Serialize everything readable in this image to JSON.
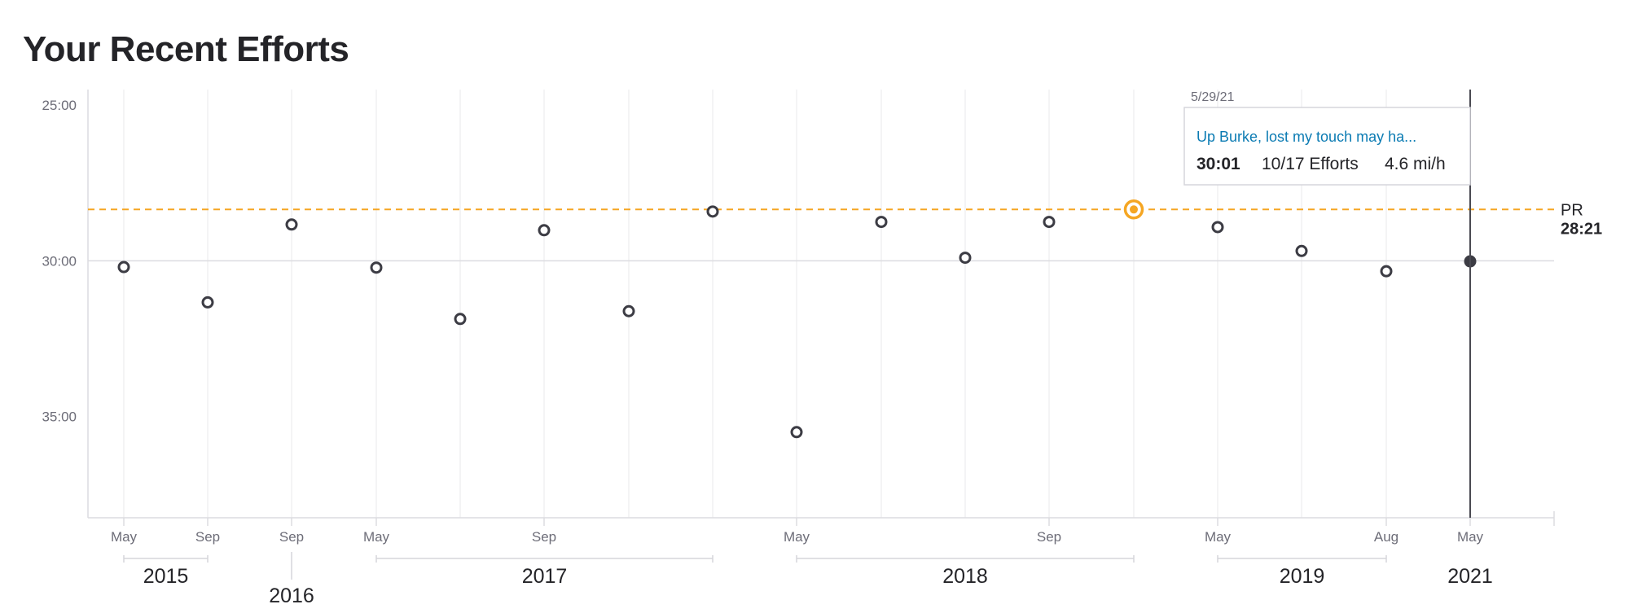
{
  "page": {
    "title": "Your Recent Efforts"
  },
  "chart_data": {
    "type": "scatter",
    "title": "Your Recent Efforts",
    "ylabel": "",
    "xlabel": "",
    "y_unit": "elapsed time (mm:ss)",
    "y_axis_inverted": true,
    "y_ticks": [
      "25:00",
      "30:00",
      "35:00"
    ],
    "ylim": [
      "24:30",
      "38:15"
    ],
    "grid": {
      "horizontal_at": [
        "30:00"
      ],
      "vertical_at_months": true
    },
    "x_month_labels": [
      "May",
      "Sep",
      "Sep",
      "May",
      "Sep",
      "May",
      "Sep",
      "May",
      "Aug",
      "May"
    ],
    "x_year_labels": [
      "2015",
      "2016",
      "2017",
      "2018",
      "2019",
      "2021"
    ],
    "points": [
      {
        "date": "May 2015",
        "time": "30:12"
      },
      {
        "date": "Sep 2015",
        "time": "31:20"
      },
      {
        "date": "Sep 2016",
        "time": "28:50"
      },
      {
        "date": "May 2017",
        "time": "30:13"
      },
      {
        "date": "Jul 2017",
        "time": "31:52"
      },
      {
        "date": "Sep 2017",
        "time": "29:01"
      },
      {
        "date": "Nov 2017",
        "time": "31:37"
      },
      {
        "date": "Jan 2018",
        "time": "28:25"
      },
      {
        "date": "May 2018",
        "time": "35:30"
      },
      {
        "date": "Jun 2018",
        "time": "28:45"
      },
      {
        "date": "Jul 2018",
        "time": "29:54"
      },
      {
        "date": "Sep 2018",
        "time": "28:45"
      },
      {
        "date": "Nov 2018",
        "time": "28:21",
        "highlight": "pr"
      },
      {
        "date": "May 2019",
        "time": "28:55"
      },
      {
        "date": "Jun 2019",
        "time": "29:41"
      },
      {
        "date": "Aug 2019",
        "time": "30:20"
      },
      {
        "date": "5/29/21",
        "time": "30:01",
        "selected": true
      }
    ],
    "pr": {
      "label": "PR",
      "value": "28:21",
      "color": "#f5a623"
    },
    "tooltip": {
      "date": "5/29/21",
      "name": "Up Burke, lost my touch may ha...",
      "time": "30:01",
      "efforts": "10/17 Efforts",
      "speed": "4.6 mi/h"
    },
    "colors": {
      "marker": "#3c3c44",
      "pr": "#f5a623",
      "link": "#0b7bb3",
      "grid": "#e8e8ec"
    }
  }
}
